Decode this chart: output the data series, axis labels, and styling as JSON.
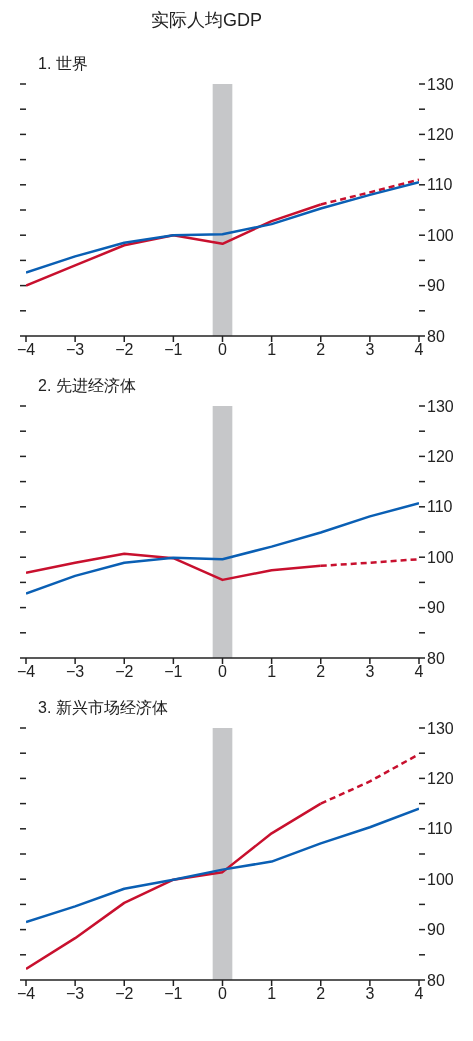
{
  "chart_data": [
    {
      "type": "line",
      "title": "实际人均GDP",
      "subtitle": "1. 世界",
      "xlim": [
        -4,
        4
      ],
      "xticks": [
        -4,
        -3,
        -2,
        -1,
        0,
        1,
        2,
        3,
        4
      ],
      "ylim": [
        80,
        130
      ],
      "yticks": [
        80,
        {
          "value": 85,
          "label": null
        },
        90,
        {
          "value": 95,
          "label": null
        },
        100,
        {
          "value": 105,
          "label": null
        },
        110,
        {
          "value": 115,
          "label": null
        },
        120,
        {
          "value": 125,
          "label": null
        },
        130
      ],
      "grid": false,
      "bands": [
        {
          "axis": "x",
          "from": -0.2,
          "to": 0.2,
          "color": "#c6c7c9"
        }
      ],
      "series": [
        {
          "color": "#c8102e",
          "line_style": "solid",
          "x": [
            -4,
            -3,
            -2,
            -1,
            0,
            1,
            2
          ],
          "values": [
            90,
            94,
            98,
            100,
            98.3,
            102.8,
            106.1
          ]
        },
        {
          "color": "#c8102e",
          "line_style": "dashed",
          "x": [
            2,
            3,
            4
          ],
          "values": [
            106.1,
            108.5,
            111
          ]
        },
        {
          "color": "#0a5fb4",
          "line_style": "solid",
          "x": [
            -4,
            -3,
            -2,
            -1,
            0,
            1,
            2,
            3,
            4
          ],
          "values": [
            92.6,
            95.8,
            98.5,
            100,
            100.2,
            102.2,
            105.3,
            108,
            110.5
          ]
        }
      ]
    },
    {
      "type": "line",
      "subtitle": "2. 先进经济体",
      "xlim": [
        -4,
        4
      ],
      "xticks": [
        -4,
        -3,
        -2,
        -1,
        0,
        1,
        2,
        3,
        4
      ],
      "ylim": [
        80,
        130
      ],
      "yticks": [
        80,
        {
          "value": 85,
          "label": null
        },
        90,
        {
          "value": 95,
          "label": null
        },
        100,
        {
          "value": 105,
          "label": null
        },
        110,
        {
          "value": 115,
          "label": null
        },
        120,
        {
          "value": 125,
          "label": null
        },
        130
      ],
      "grid": false,
      "bands": [
        {
          "axis": "x",
          "from": -0.2,
          "to": 0.2,
          "color": "#c6c7c9"
        }
      ],
      "series": [
        {
          "color": "#c8102e",
          "line_style": "solid",
          "x": [
            -4,
            -3,
            -2,
            -1,
            0,
            1,
            2
          ],
          "values": [
            96.9,
            98.9,
            100.7,
            99.8,
            95.5,
            97.4,
            98.3
          ]
        },
        {
          "color": "#c8102e",
          "line_style": "dashed",
          "x": [
            2,
            3,
            4
          ],
          "values": [
            98.3,
            98.9,
            99.6
          ]
        },
        {
          "color": "#0a5fb4",
          "line_style": "solid",
          "x": [
            -4,
            -3,
            -2,
            -1,
            0,
            1,
            2,
            3,
            4
          ],
          "values": [
            92.8,
            96.3,
            98.9,
            99.9,
            99.6,
            102.1,
            104.9,
            108.1,
            110.7
          ]
        }
      ]
    },
    {
      "type": "line",
      "subtitle": "3. 新兴市场经济体",
      "xlim": [
        -4,
        4
      ],
      "xticks": [
        -4,
        -3,
        -2,
        -1,
        0,
        1,
        2,
        3,
        4
      ],
      "ylim": [
        80,
        130
      ],
      "yticks": [
        80,
        {
          "value": 85,
          "label": null
        },
        90,
        {
          "value": 95,
          "label": null
        },
        100,
        {
          "value": 105,
          "label": null
        },
        110,
        {
          "value": 115,
          "label": null
        },
        120,
        {
          "value": 125,
          "label": null
        },
        130
      ],
      "grid": false,
      "bands": [
        {
          "axis": "x",
          "from": -0.2,
          "to": 0.2,
          "color": "#c6c7c9"
        }
      ],
      "series": [
        {
          "color": "#c8102e",
          "line_style": "solid",
          "x": [
            -4,
            -3,
            -2,
            -1,
            0,
            1,
            2
          ],
          "values": [
            82.2,
            88.3,
            95.3,
            99.9,
            101.4,
            109.1,
            115
          ]
        },
        {
          "color": "#c8102e",
          "line_style": "dashed",
          "x": [
            2,
            3,
            4
          ],
          "values": [
            115,
            119.4,
            124.8
          ]
        },
        {
          "color": "#0a5fb4",
          "line_style": "solid",
          "x": [
            -4,
            -3,
            -2,
            -1,
            0,
            1,
            2,
            3,
            4
          ],
          "values": [
            91.5,
            94.6,
            98.1,
            99.9,
            101.9,
            103.5,
            107.1,
            110.3,
            114
          ]
        }
      ]
    }
  ]
}
